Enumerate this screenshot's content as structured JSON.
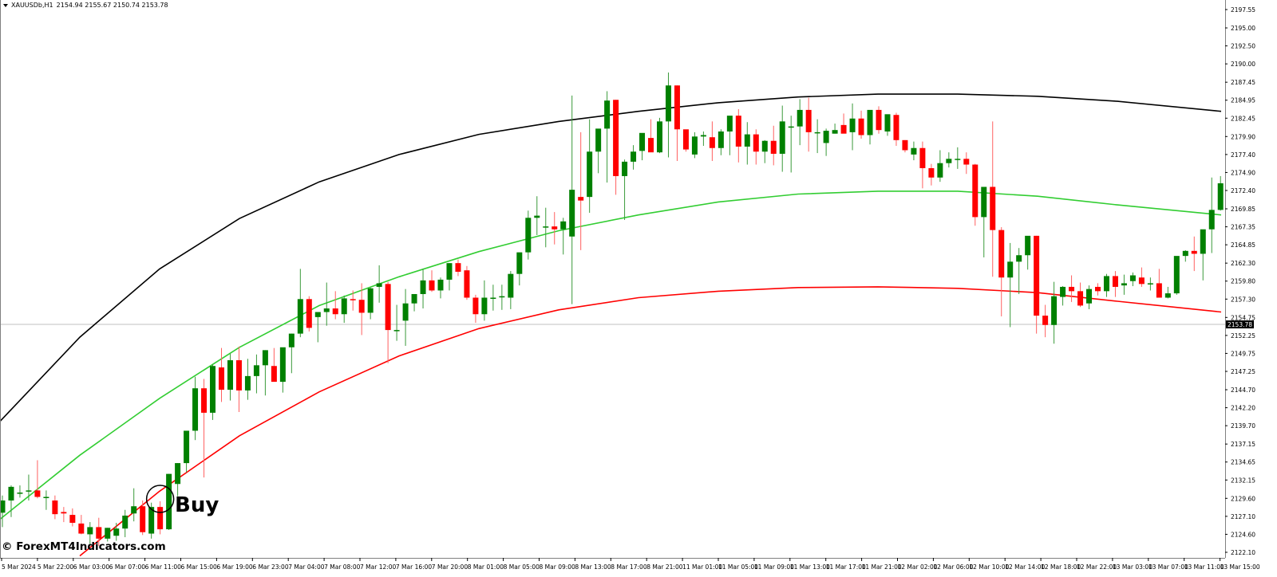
{
  "header": {
    "symbol": "XAUUSDb,H1",
    "ohlc": "2154.94 2155.67 2150.74 2153.78"
  },
  "watermark": "© ForexMT4Indicators.com",
  "signal": {
    "label": "Buy",
    "candle_index": 18
  },
  "colors": {
    "bull": "#008000",
    "bear": "#ff0000",
    "upper_band": "#000000",
    "middle_band": "#32cd32",
    "lower_band": "#ff0000",
    "grid_line": "#c0c0c0",
    "axis": "#808080"
  },
  "chart_data": {
    "type": "candlestick",
    "title": "XAUUSDb,H1",
    "xlabel": "",
    "ylabel": "",
    "ylim": [
      2122.1,
      2197.55
    ],
    "grid": false,
    "current_price": 2153.78,
    "y_ticks": [
      "2197.55",
      "2195.00",
      "2192.50",
      "2190.00",
      "2187.45",
      "2184.95",
      "2182.45",
      "2179.90",
      "2177.40",
      "2174.90",
      "2172.40",
      "2169.85",
      "2167.35",
      "2164.85",
      "2162.30",
      "2159.80",
      "2157.30",
      "2154.75",
      "2152.25",
      "2149.75",
      "2147.25",
      "2144.70",
      "2142.20",
      "2139.70",
      "2137.15",
      "2134.65",
      "2132.15",
      "2129.60",
      "2127.10",
      "2124.60",
      "2122.10"
    ],
    "x_ticks": [
      "5 Mar 2024",
      "5 Mar 22:00",
      "6 Mar 03:00",
      "6 Mar 07:00",
      "6 Mar 11:00",
      "6 Mar 15:00",
      "6 Mar 19:00",
      "6 Mar 23:00",
      "7 Mar 04:00",
      "7 Mar 08:00",
      "7 Mar 12:00",
      "7 Mar 16:00",
      "7 Mar 20:00",
      "8 Mar 01:00",
      "8 Mar 05:00",
      "8 Mar 09:00",
      "8 Mar 13:00",
      "8 Mar 17:00",
      "8 Mar 21:00",
      "11 Mar 01:00",
      "11 Mar 05:00",
      "11 Mar 09:00",
      "11 Mar 13:00",
      "11 Mar 17:00",
      "11 Mar 21:00",
      "12 Mar 02:00",
      "12 Mar 06:00",
      "12 Mar 10:00",
      "12 Mar 14:00",
      "12 Mar 18:00",
      "12 Mar 22:00",
      "13 Mar 03:00",
      "13 Mar 07:00",
      "13 Mar 11:00",
      "13 Mar 15:00"
    ],
    "candles_ohlc": [
      [
        2127.6,
        2130.0,
        2125.6,
        2129.3
      ],
      [
        2129.3,
        2131.4,
        2127.0,
        2131.2
      ],
      [
        2130.4,
        2131.4,
        2129.7,
        2130.4
      ],
      [
        2130.7,
        2132.9,
        2129.3,
        2130.7
      ],
      [
        2130.7,
        2134.9,
        2129.6,
        2129.8
      ],
      [
        2129.8,
        2130.7,
        2128.0,
        2129.8
      ],
      [
        2129.3,
        2130.0,
        2126.7,
        2127.4
      ],
      [
        2127.7,
        2128.4,
        2126.3,
        2127.5
      ],
      [
        2127.3,
        2128.2,
        2125.7,
        2126.2
      ],
      [
        2126.1,
        2127.3,
        2124.6,
        2124.7
      ],
      [
        2124.6,
        2126.3,
        2123.3,
        2125.6
      ],
      [
        2125.6,
        2126.9,
        2123.0,
        2124.0
      ],
      [
        2124.0,
        2125.5,
        2123.6,
        2125.5
      ],
      [
        2124.4,
        2126.2,
        2123.7,
        2125.4
      ],
      [
        2125.4,
        2128.0,
        2124.2,
        2127.2
      ],
      [
        2127.5,
        2131.0,
        2126.4,
        2128.5
      ],
      [
        2128.5,
        2129.3,
        2124.5,
        2124.9
      ],
      [
        2124.7,
        2129.0,
        2124.0,
        2128.4
      ],
      [
        2128.4,
        2129.2,
        2124.6,
        2125.3
      ],
      [
        2125.3,
        2133.0,
        2125.2,
        2133.0
      ],
      [
        2131.6,
        2134.5,
        2129.9,
        2134.5
      ],
      [
        2134.5,
        2138.6,
        2133.2,
        2139.0
      ],
      [
        2139.0,
        2146.5,
        2137.7,
        2144.9
      ],
      [
        2144.9,
        2146.2,
        2132.5,
        2141.5
      ],
      [
        2141.5,
        2148.2,
        2140.5,
        2148.0
      ],
      [
        2147.8,
        2150.5,
        2143.0,
        2144.7
      ],
      [
        2144.7,
        2149.7,
        2143.2,
        2148.8
      ],
      [
        2148.8,
        2150.7,
        2141.6,
        2144.6
      ],
      [
        2144.6,
        2149.0,
        2143.3,
        2146.6
      ],
      [
        2146.6,
        2149.6,
        2144.2,
        2148.1
      ],
      [
        2148.1,
        2150.2,
        2143.9,
        2150.2
      ],
      [
        2148.0,
        2150.5,
        2146.8,
        2145.8
      ],
      [
        2145.8,
        2147.8,
        2144.3,
        2150.6
      ],
      [
        2150.6,
        2152.5,
        2147.0,
        2152.5
      ],
      [
        2152.5,
        2161.5,
        2152.0,
        2157.3
      ],
      [
        2157.3,
        2157.7,
        2152.8,
        2153.3
      ],
      [
        2154.8,
        2155.2,
        2151.3,
        2155.5
      ],
      [
        2155.5,
        2159.6,
        2153.6,
        2156.0
      ],
      [
        2156.0,
        2158.4,
        2154.5,
        2155.2
      ],
      [
        2155.2,
        2157.8,
        2154.0,
        2157.4
      ],
      [
        2157.3,
        2158.5,
        2155.7,
        2157.2
      ],
      [
        2157.2,
        2159.5,
        2152.3,
        2155.4
      ],
      [
        2155.4,
        2158.9,
        2154.5,
        2158.8
      ],
      [
        2159.0,
        2162.0,
        2156.8,
        2159.5
      ],
      [
        2159.4,
        2159.7,
        2148.4,
        2153.0
      ],
      [
        2153.0,
        2156.5,
        2151.5,
        2153.0
      ],
      [
        2154.3,
        2158.7,
        2150.8,
        2156.7
      ],
      [
        2156.7,
        2157.8,
        2155.6,
        2158.0
      ],
      [
        2158.0,
        2161.5,
        2156.0,
        2159.9
      ],
      [
        2159.9,
        2161.3,
        2158.3,
        2158.5
      ],
      [
        2158.5,
        2160.3,
        2157.4,
        2160.0
      ],
      [
        2160.0,
        2162.3,
        2158.5,
        2162.3
      ],
      [
        2162.3,
        2162.8,
        2160.5,
        2161.1
      ],
      [
        2161.3,
        2161.9,
        2157.2,
        2157.5
      ],
      [
        2157.5,
        2157.9,
        2154.0,
        2155.2
      ],
      [
        2155.2,
        2159.9,
        2154.3,
        2157.5
      ],
      [
        2157.5,
        2159.3,
        2155.7,
        2157.5
      ],
      [
        2157.7,
        2159.3,
        2155.8,
        2157.7
      ],
      [
        2157.5,
        2161.2,
        2155.9,
        2160.8
      ],
      [
        2160.8,
        2163.4,
        2159.2,
        2163.8
      ],
      [
        2163.8,
        2169.6,
        2162.8,
        2168.6
      ],
      [
        2168.6,
        2171.6,
        2166.2,
        2168.9
      ],
      [
        2167.4,
        2170.0,
        2164.5,
        2167.4
      ],
      [
        2167.4,
        2169.4,
        2164.9,
        2167.0
      ],
      [
        2167.0,
        2168.6,
        2163.5,
        2168.1
      ],
      [
        2166.0,
        2185.6,
        2156.6,
        2172.5
      ],
      [
        2171.5,
        2180.5,
        2164.1,
        2171.0
      ],
      [
        2171.5,
        2182.3,
        2169.3,
        2177.8
      ],
      [
        2177.8,
        2179.1,
        2174.8,
        2181.0
      ],
      [
        2181.0,
        2186.2,
        2173.5,
        2184.9
      ],
      [
        2185.0,
        2185.0,
        2171.8,
        2174.4
      ],
      [
        2174.4,
        2176.7,
        2168.3,
        2176.4
      ],
      [
        2176.4,
        2178.7,
        2175.3,
        2177.8
      ],
      [
        2177.9,
        2180.3,
        2176.6,
        2180.4
      ],
      [
        2179.7,
        2182.3,
        2178.4,
        2177.7
      ],
      [
        2177.7,
        2182.5,
        2177.6,
        2182.0
      ],
      [
        2182.0,
        2188.8,
        2177.0,
        2187.0
      ],
      [
        2187.0,
        2187.0,
        2176.5,
        2180.9
      ],
      [
        2180.9,
        2179.7,
        2177.8,
        2178.1
      ],
      [
        2177.4,
        2180.5,
        2176.9,
        2179.9
      ],
      [
        2179.9,
        2180.6,
        2178.6,
        2180.1
      ],
      [
        2179.8,
        2182.0,
        2176.5,
        2178.3
      ],
      [
        2178.3,
        2180.9,
        2177.3,
        2180.6
      ],
      [
        2180.6,
        2181.4,
        2177.3,
        2182.8
      ],
      [
        2182.8,
        2183.7,
        2176.3,
        2178.5
      ],
      [
        2178.5,
        2181.9,
        2176.0,
        2180.2
      ],
      [
        2180.2,
        2180.9,
        2176.0,
        2177.8
      ],
      [
        2177.8,
        2179.4,
        2176.2,
        2179.3
      ],
      [
        2179.3,
        2181.4,
        2175.9,
        2177.5
      ],
      [
        2177.5,
        2184.2,
        2175.0,
        2182.0
      ],
      [
        2181.2,
        2182.8,
        2174.9,
        2181.3
      ],
      [
        2181.3,
        2185.1,
        2178.7,
        2183.6
      ],
      [
        2183.6,
        2185.3,
        2177.8,
        2180.5
      ],
      [
        2180.5,
        2182.3,
        2177.6,
        2180.5
      ],
      [
        2179.0,
        2181.0,
        2177.2,
        2180.7
      ],
      [
        2180.3,
        2181.7,
        2180.3,
        2180.8
      ],
      [
        2181.5,
        2183.1,
        2180.6,
        2180.3
      ],
      [
        2180.5,
        2184.5,
        2178.0,
        2182.4
      ],
      [
        2182.4,
        2183.5,
        2179.6,
        2180.1
      ],
      [
        2180.1,
        2182.8,
        2178.8,
        2183.6
      ],
      [
        2183.6,
        2184.1,
        2180.3,
        2180.8
      ],
      [
        2180.6,
        2182.8,
        2180.0,
        2183.0
      ],
      [
        2182.9,
        2183.2,
        2178.6,
        2179.4
      ],
      [
        2179.4,
        2179.4,
        2177.7,
        2178.0
      ],
      [
        2177.4,
        2179.2,
        2176.6,
        2178.3
      ],
      [
        2178.3,
        2179.2,
        2172.7,
        2175.5
      ],
      [
        2175.5,
        2176.1,
        2173.1,
        2174.2
      ],
      [
        2174.2,
        2178.0,
        2173.6,
        2176.2
      ],
      [
        2176.2,
        2177.7,
        2175.6,
        2176.8
      ],
      [
        2176.8,
        2178.4,
        2175.4,
        2176.8
      ],
      [
        2176.8,
        2177.7,
        2174.7,
        2176.0
      ],
      [
        2176.0,
        2176.1,
        2167.5,
        2168.7
      ],
      [
        2168.7,
        2172.0,
        2163.1,
        2172.9
      ],
      [
        2172.9,
        2182.0,
        2160.4,
        2166.9
      ],
      [
        2166.9,
        2167.3,
        2154.9,
        2160.3
      ],
      [
        2160.3,
        2165.1,
        2153.4,
        2162.5
      ],
      [
        2162.5,
        2164.4,
        2158.0,
        2163.4
      ],
      [
        2163.4,
        2165.8,
        2161.4,
        2166.1
      ],
      [
        2166.1,
        2166.1,
        2152.5,
        2155.0
      ],
      [
        2155.0,
        2156.5,
        2152.0,
        2153.7
      ],
      [
        2153.7,
        2159.7,
        2151.1,
        2157.7
      ],
      [
        2157.6,
        2159.1,
        2156.4,
        2159.0
      ],
      [
        2159.0,
        2160.6,
        2156.9,
        2158.4
      ],
      [
        2158.4,
        2159.6,
        2156.2,
        2156.4
      ],
      [
        2156.7,
        2159.2,
        2155.9,
        2158.7
      ],
      [
        2159.0,
        2159.5,
        2157.8,
        2158.4
      ],
      [
        2158.4,
        2160.8,
        2157.6,
        2160.5
      ],
      [
        2160.5,
        2161.2,
        2157.6,
        2159.0
      ],
      [
        2159.2,
        2160.7,
        2157.9,
        2159.5
      ],
      [
        2159.8,
        2161.0,
        2159.1,
        2160.6
      ],
      [
        2160.3,
        2161.7,
        2159.0,
        2159.4
      ],
      [
        2159.4,
        2160.3,
        2158.5,
        2159.5
      ],
      [
        2159.5,
        2161.5,
        2157.9,
        2157.5
      ],
      [
        2157.5,
        2159.0,
        2157.4,
        2158.1
      ],
      [
        2158.1,
        2163.1,
        2157.9,
        2163.3
      ],
      [
        2163.3,
        2164.1,
        2162.5,
        2164.0
      ],
      [
        2164.0,
        2166.0,
        2161.2,
        2163.6
      ],
      [
        2163.6,
        2166.2,
        2159.9,
        2167.0
      ],
      [
        2167.0,
        2174.2,
        2163.7,
        2169.7
      ],
      [
        2169.7,
        2174.4,
        2169.6,
        2173.4
      ]
    ],
    "series": [
      {
        "name": "Upper band",
        "color": "#000000",
        "points": [
          [
            0,
            2140.3
          ],
          [
            100,
            2152.0
          ],
          [
            200,
            2161.5
          ],
          [
            300,
            2168.5
          ],
          [
            400,
            2173.6
          ],
          [
            500,
            2177.4
          ],
          [
            600,
            2180.2
          ],
          [
            700,
            2182.0
          ],
          [
            800,
            2183.4
          ],
          [
            900,
            2184.6
          ],
          [
            1000,
            2185.4
          ],
          [
            1100,
            2185.8
          ],
          [
            1200,
            2185.8
          ],
          [
            1300,
            2185.5
          ],
          [
            1400,
            2184.8
          ],
          [
            1530,
            2183.4
          ]
        ]
      },
      {
        "name": "Middle band",
        "color": "#32cd32",
        "points": [
          [
            0,
            2126.7
          ],
          [
            100,
            2135.6
          ],
          [
            200,
            2143.5
          ],
          [
            300,
            2150.6
          ],
          [
            400,
            2156.4
          ],
          [
            500,
            2160.4
          ],
          [
            600,
            2163.9
          ],
          [
            700,
            2166.8
          ],
          [
            800,
            2169.0
          ],
          [
            900,
            2170.8
          ],
          [
            1000,
            2171.9
          ],
          [
            1100,
            2172.3
          ],
          [
            1200,
            2172.3
          ],
          [
            1300,
            2171.6
          ],
          [
            1400,
            2170.4
          ],
          [
            1530,
            2169.0
          ]
        ]
      },
      {
        "name": "Lower band",
        "color": "#ff0000",
        "points": [
          [
            100,
            2121.6
          ],
          [
            200,
            2130.6
          ],
          [
            300,
            2138.3
          ],
          [
            400,
            2144.4
          ],
          [
            500,
            2149.4
          ],
          [
            600,
            2153.2
          ],
          [
            700,
            2155.8
          ],
          [
            800,
            2157.5
          ],
          [
            900,
            2158.4
          ],
          [
            1000,
            2158.9
          ],
          [
            1100,
            2159.0
          ],
          [
            1200,
            2158.8
          ],
          [
            1300,
            2158.2
          ],
          [
            1400,
            2157.0
          ],
          [
            1530,
            2155.5
          ]
        ]
      }
    ]
  }
}
